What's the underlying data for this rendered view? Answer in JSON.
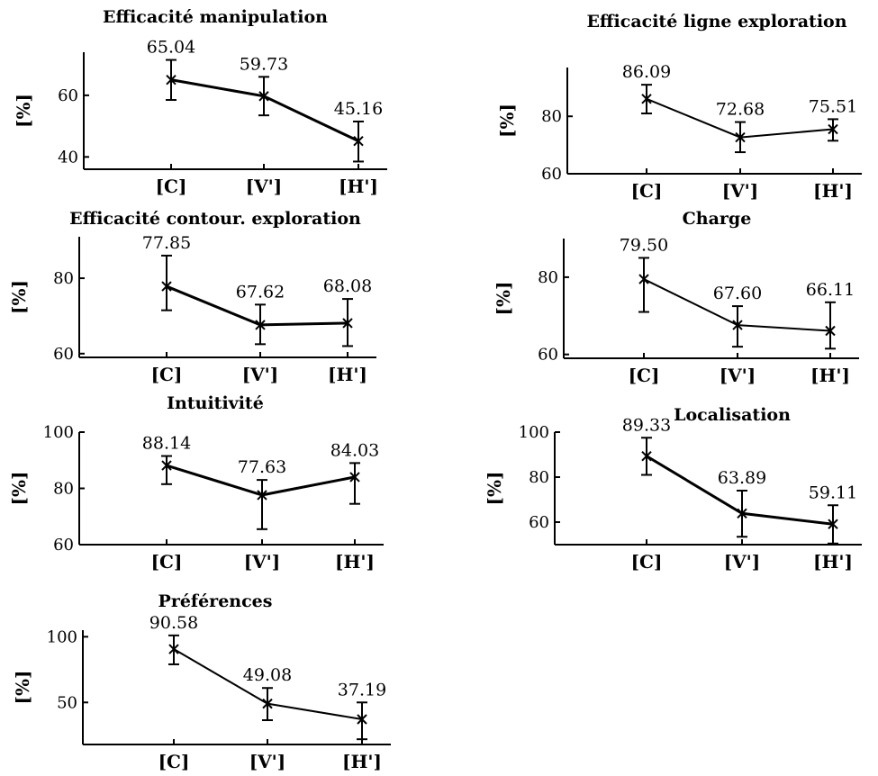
{
  "chart_data": [
    {
      "type": "line",
      "title": "Efficacité manipulation",
      "ylabel": "[%]",
      "categories": [
        "[C]",
        "[V']",
        "[H']"
      ],
      "values": [
        65.04,
        59.73,
        45.16
      ],
      "value_labels": [
        "65.04",
        "59.73",
        "45.16"
      ],
      "error_low": [
        58.5,
        53.5,
        38.5
      ],
      "error_high": [
        71.5,
        66.0,
        51.5
      ],
      "yticks": [
        40,
        60
      ],
      "ylim": [
        36,
        74
      ]
    },
    {
      "type": "line",
      "title": "Efficacité ligne exploration",
      "ylabel": "[%]",
      "categories": [
        "[C]",
        "[V']",
        "[H']"
      ],
      "values": [
        86.09,
        72.68,
        75.51
      ],
      "value_labels": [
        "86.09",
        "72.68",
        "75.51"
      ],
      "error_low": [
        81.0,
        67.5,
        71.5
      ],
      "error_high": [
        91.0,
        78.0,
        79.0
      ],
      "yticks": [
        60,
        80
      ],
      "ylim": [
        60,
        97
      ]
    },
    {
      "type": "line",
      "title": "Efficacité contour. exploration",
      "ylabel": "[%]",
      "categories": [
        "[C]",
        "[V']",
        "[H']"
      ],
      "values": [
        77.85,
        67.62,
        68.08
      ],
      "value_labels": [
        "77.85",
        "67.62",
        "68.08"
      ],
      "error_low": [
        71.5,
        62.5,
        62.0
      ],
      "error_high": [
        86.0,
        73.0,
        74.5
      ],
      "yticks": [
        60,
        80
      ],
      "ylim": [
        59,
        91
      ]
    },
    {
      "type": "line",
      "title": "Charge",
      "ylabel": "[%]",
      "categories": [
        "[C]",
        "[V']",
        "[H']"
      ],
      "values": [
        79.5,
        67.6,
        66.11
      ],
      "value_labels": [
        "79.50",
        "67.60",
        "66.11"
      ],
      "error_low": [
        71.0,
        62.0,
        61.5
      ],
      "error_high": [
        85.0,
        72.5,
        73.5
      ],
      "yticks": [
        60,
        80
      ],
      "ylim": [
        59,
        90
      ]
    },
    {
      "type": "line",
      "title": "Intuitivité",
      "ylabel": "[%]",
      "categories": [
        "[C]",
        "[V']",
        "[H']"
      ],
      "values": [
        88.14,
        77.63,
        84.03
      ],
      "value_labels": [
        "88.14",
        "77.63",
        "84.03"
      ],
      "error_low": [
        81.5,
        65.5,
        74.5
      ],
      "error_high": [
        91.5,
        83.0,
        89.0
      ],
      "yticks": [
        60,
        80,
        100
      ],
      "ylim": [
        60,
        100
      ]
    },
    {
      "type": "line",
      "title": "Localisation",
      "ylabel": "[%]",
      "categories": [
        "[C]",
        "[V']",
        "[H']"
      ],
      "values": [
        89.33,
        63.89,
        59.11
      ],
      "value_labels": [
        "89.33",
        "63.89",
        "59.11"
      ],
      "error_low": [
        81.0,
        53.5,
        50.5
      ],
      "error_high": [
        97.5,
        74.0,
        67.5
      ],
      "yticks": [
        60,
        80,
        100
      ],
      "ylim": [
        50,
        100
      ]
    },
    {
      "type": "line",
      "title": "Préférences",
      "ylabel": "[%]",
      "categories": [
        "[C]",
        "[V']",
        "[H']"
      ],
      "values": [
        90.58,
        49.08,
        37.19
      ],
      "value_labels": [
        "90.58",
        "49.08",
        "37.19"
      ],
      "error_low": [
        79.0,
        36.5,
        22.0
      ],
      "error_high": [
        101.0,
        61.0,
        50.0
      ],
      "yticks": [
        50,
        100
      ],
      "ylim": [
        18,
        105
      ]
    }
  ]
}
